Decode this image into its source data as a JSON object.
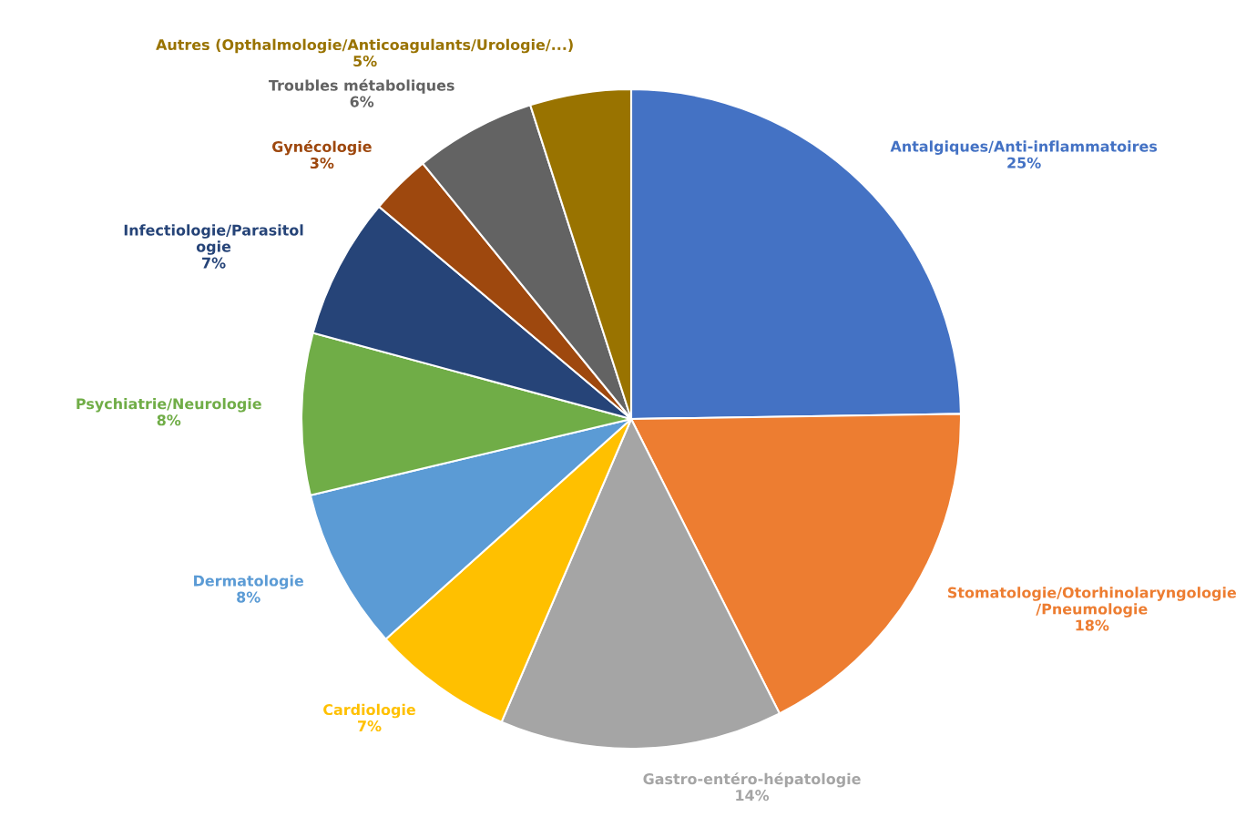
{
  "chart_data": {
    "type": "pie",
    "categories": [
      "Antalgiques/Anti-inflammatoires",
      "Stomatologie/Otorhinolaryngologie\n/Pneumologie",
      "Gastro-entéro-hépatologie",
      "Cardiologie",
      "Dermatologie",
      "Psychiatrie/Neurologie",
      "Infectiologie/Parasitol\nogie",
      "Gynécologie",
      "Troubles métaboliques",
      "Autres (Opthalmologie/Anticoagulants/Urologie/...)"
    ],
    "values": [
      25,
      18,
      14,
      7,
      8,
      8,
      7,
      3,
      6,
      5
    ],
    "value_labels": [
      "25%",
      "18%",
      "14%",
      "7%",
      "8%",
      "8%",
      "7%",
      "3%",
      "6%",
      "5%"
    ],
    "colors": [
      "#4472c4",
      "#ed7d31",
      "#a5a5a5",
      "#ffc000",
      "#5b9bd5",
      "#70ad47",
      "#264478",
      "#9e480e",
      "#636363",
      "#997300"
    ],
    "legend": false
  }
}
